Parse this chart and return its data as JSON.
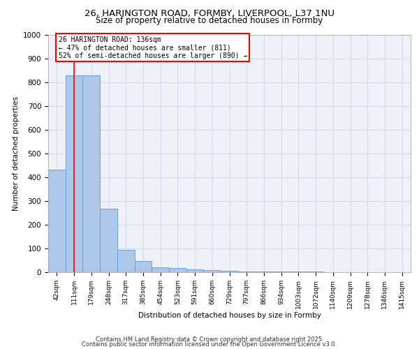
{
  "title_line1": "26, HARINGTON ROAD, FORMBY, LIVERPOOL, L37 1NU",
  "title_line2": "Size of property relative to detached houses in Formby",
  "xlabel": "Distribution of detached houses by size in Formby",
  "ylabel": "Number of detached properties",
  "bar_labels": [
    "42sqm",
    "111sqm",
    "179sqm",
    "248sqm",
    "317sqm",
    "385sqm",
    "454sqm",
    "523sqm",
    "591sqm",
    "660sqm",
    "729sqm",
    "797sqm",
    "866sqm",
    "934sqm",
    "1003sqm",
    "1072sqm",
    "1140sqm",
    "1209sqm",
    "1278sqm",
    "1346sqm",
    "1415sqm"
  ],
  "bar_values": [
    432,
    830,
    830,
    268,
    93,
    47,
    22,
    18,
    13,
    8,
    5,
    4,
    3,
    3,
    2,
    2,
    1,
    1,
    1,
    1,
    1
  ],
  "bar_color": "#aec6e8",
  "bar_edge_color": "#5b9bd5",
  "grid_color": "#d0d8e8",
  "background_color": "#eef2f8",
  "vline_x": 1,
  "vline_color": "red",
  "annotation_text": "26 HARINGTON ROAD: 136sqm\n← 47% of detached houses are smaller (811)\n52% of semi-detached houses are larger (890) →",
  "annotation_box_color": "white",
  "annotation_box_edge_color": "red",
  "ylim": [
    0,
    1000
  ],
  "yticks": [
    0,
    100,
    200,
    300,
    400,
    500,
    600,
    700,
    800,
    900,
    1000
  ],
  "footer_line1": "Contains HM Land Registry data © Crown copyright and database right 2025.",
  "footer_line2": "Contains public sector information licensed under the Open Government Licence v3.0."
}
